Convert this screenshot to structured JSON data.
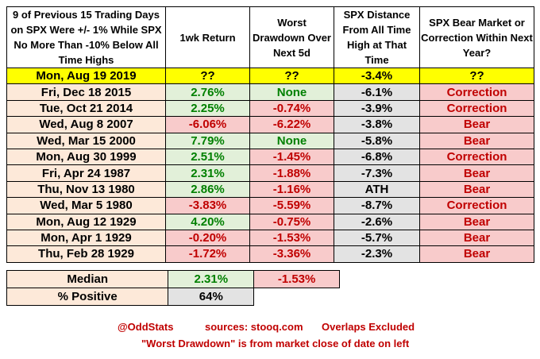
{
  "headers": {
    "col1": "9 of Previous 15 Trading Days on SPX Were +/- 1% While SPX No More Than -10% Below All Time Highs",
    "col2": "1wk Return",
    "col3": "Worst Drawdown Over Next 5d",
    "col4": "SPX Distance From All Time High at That Time",
    "col5": "SPX Bear Market or Correction Within Next Year?"
  },
  "current": {
    "date": "Mon, Aug 19 2019",
    "ret": "??",
    "dd": "??",
    "dist": "-3.4%",
    "outcome": "??"
  },
  "rows": [
    {
      "date": "Fri, Dec 18 2015",
      "ret": "2.76%",
      "dd": "None",
      "dist": "-6.1%",
      "outcome": "Correction"
    },
    {
      "date": "Tue, Oct 21 2014",
      "ret": "2.25%",
      "dd": "-0.74%",
      "dist": "-3.9%",
      "outcome": "Correction"
    },
    {
      "date": "Wed, Aug 8 2007",
      "ret": "-6.06%",
      "dd": "-6.22%",
      "dist": "-3.8%",
      "outcome": "Bear"
    },
    {
      "date": "Wed, Mar 15 2000",
      "ret": "7.79%",
      "dd": "None",
      "dist": "-5.8%",
      "outcome": "Bear"
    },
    {
      "date": "Mon, Aug 30 1999",
      "ret": "2.51%",
      "dd": "-1.45%",
      "dist": "-6.8%",
      "outcome": "Correction"
    },
    {
      "date": "Fri, Apr 24 1987",
      "ret": "2.31%",
      "dd": "-1.88%",
      "dist": "-7.3%",
      "outcome": "Bear"
    },
    {
      "date": "Thu, Nov 13 1980",
      "ret": "2.86%",
      "dd": "-1.16%",
      "dist": "ATH",
      "outcome": "Bear"
    },
    {
      "date": "Wed, Mar 5 1980",
      "ret": "-3.83%",
      "dd": "-5.59%",
      "dist": "-8.7%",
      "outcome": "Correction"
    },
    {
      "date": "Mon, Aug 12 1929",
      "ret": "4.20%",
      "dd": "-0.75%",
      "dist": "-2.6%",
      "outcome": "Bear"
    },
    {
      "date": "Mon, Apr 1 1929",
      "ret": "-0.20%",
      "dd": "-1.53%",
      "dist": "-5.7%",
      "outcome": "Bear"
    },
    {
      "date": "Thu, Feb 28 1929",
      "ret": "-1.72%",
      "dd": "-3.36%",
      "dist": "-2.3%",
      "outcome": "Bear"
    }
  ],
  "summary": {
    "median_label": "Median",
    "median_ret": "2.31%",
    "median_dd": "-1.53%",
    "positive_label": "% Positive",
    "positive_ret": "64%"
  },
  "footer": {
    "handle": "@OddStats",
    "sources": "sources: stooq.com",
    "overlaps": "Overlaps Excluded",
    "note": "\"Worst Drawdown\" is from market close of date on left"
  }
}
